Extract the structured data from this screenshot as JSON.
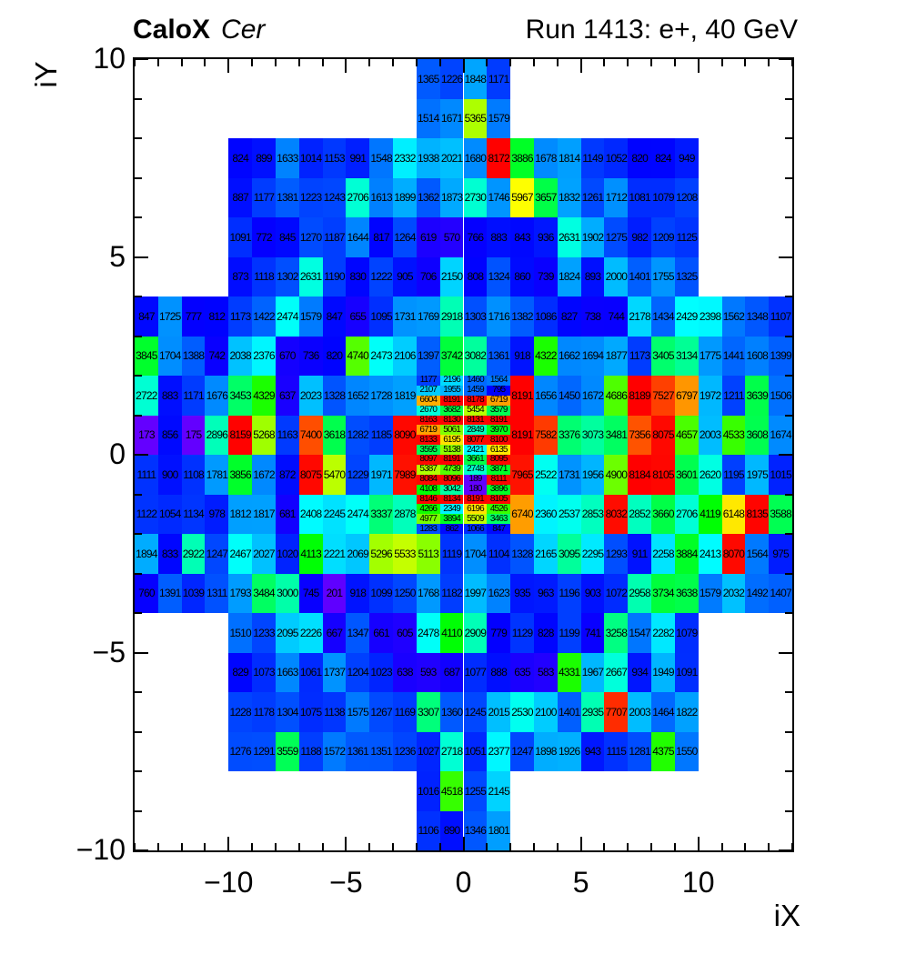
{
  "header": {
    "title_left_bold": "CaloX",
    "title_left_italic": "Cer",
    "title_right": "Run 1413: e+, 40 GeV"
  },
  "chart_data": {
    "type": "heatmap",
    "title": "CaloX Cer",
    "annotation_right": "Run 1413: e+, 40 GeV",
    "xlabel": "iX",
    "ylabel": "iY",
    "xlim": [
      -14,
      14
    ],
    "ylim": [
      -10,
      10
    ],
    "zmin": 0,
    "zmax": 8191,
    "palette": "root-rainbow-blue-to-red",
    "grid": false,
    "x_major_ticks": [
      -10,
      -5,
      0,
      5,
      10
    ],
    "x_tick_labels": [
      "−10",
      "−5",
      "0",
      "5",
      "10"
    ],
    "y_major_ticks": [
      10,
      5,
      0,
      -5,
      -10
    ],
    "y_tick_labels": [
      "10",
      "5",
      "0",
      "−5",
      "−10"
    ],
    "rows": [
      {
        "y_top": 10,
        "segments": [
          {
            "x0": -2,
            "values": [
              1365,
              1226,
              1848,
              1171
            ]
          }
        ]
      },
      {
        "y_top": 9,
        "segments": [
          {
            "x0": -2,
            "values": [
              1514,
              1671,
              5365,
              1579
            ]
          }
        ]
      },
      {
        "y_top": 8,
        "segments": [
          {
            "x0": -10,
            "values": [
              824,
              899,
              1633,
              1014,
              1153,
              991,
              1548,
              2332,
              1938,
              2021,
              1680,
              8172,
              3886,
              1678,
              1814,
              1149,
              1052,
              820,
              824,
              949
            ]
          }
        ]
      },
      {
        "y_top": 7,
        "segments": [
          {
            "x0": -10,
            "values": [
              887,
              1177,
              1381,
              1223,
              1243,
              2706,
              1613,
              1899,
              1362,
              1873,
              2730,
              1746,
              5967,
              3657,
              1832,
              1261,
              1712,
              1081,
              1079,
              1208
            ]
          }
        ]
      },
      {
        "y_top": 6,
        "segments": [
          {
            "x0": -10,
            "values": [
              1091,
              772,
              845,
              1270,
              1187,
              1644,
              817,
              1264,
              619,
              570,
              766,
              883,
              843,
              936,
              2631,
              1902,
              1275,
              982,
              1209,
              1125
            ]
          }
        ]
      },
      {
        "y_top": 5,
        "segments": [
          {
            "x0": -10,
            "values": [
              873,
              1118,
              1302,
              2631,
              1190,
              830,
              1222,
              905,
              706,
              2150,
              808,
              1324,
              860,
              739,
              1824,
              893,
              2000,
              1401,
              1755,
              1325
            ]
          }
        ]
      },
      {
        "y_top": 4,
        "segments": [
          {
            "x0": -14,
            "values": [
              847,
              1725,
              777,
              812,
              1173,
              1422,
              2474,
              1579,
              847,
              655,
              1095,
              1731,
              1769,
              2918,
              1303,
              1716,
              1382,
              1086,
              827,
              738,
              744,
              2178,
              1434,
              2429,
              2398,
              1562,
              1348,
              1107
            ]
          }
        ]
      },
      {
        "y_top": 3,
        "segments": [
          {
            "x0": -14,
            "values": [
              3845,
              1704,
              1388,
              742,
              2038,
              2376,
              670,
              736,
              820,
              4740,
              2473,
              2106,
              1397,
              3742,
              3082,
              1361,
              918,
              4322,
              1662,
              1694,
              1877,
              1173,
              3405,
              3134,
              1775,
              1441,
              1608,
              1399
            ]
          }
        ]
      },
      {
        "y_top": 2,
        "segments": [
          {
            "x0": -14,
            "values": [
              2722,
              883,
              1171,
              1676,
              3453,
              4329,
              637,
              2023,
              1328,
              1652,
              1728,
              1819
            ]
          },
          {
            "x0": 2,
            "values": [
              8191,
              1656,
              1450,
              1672,
              4686,
              8189,
              7527,
              6797,
              1972,
              1211,
              3639,
              1506
            ]
          }
        ]
      },
      {
        "y_top": 1,
        "segments": [
          {
            "x0": -14,
            "values": [
              173,
              856,
              175,
              2896,
              8159,
              5268,
              1163,
              7400,
              3618,
              1282,
              1185,
              8090
            ]
          },
          {
            "x0": 2,
            "values": [
              8191,
              7582,
              3376,
              3073,
              3481,
              7356,
              8075,
              4657,
              2003,
              4533,
              3608,
              1674
            ]
          }
        ]
      },
      {
        "y_top": 0,
        "segments": [
          {
            "x0": -14,
            "values": [
              1111,
              900,
              1108,
              1781,
              3856,
              1672,
              872,
              8075,
              5470,
              1229,
              1971,
              7989
            ]
          },
          {
            "x0": 2,
            "values": [
              7965,
              2522,
              1731,
              1956,
              4900,
              8184,
              8105,
              3601,
              2620,
              1195,
              1975,
              1015
            ]
          }
        ]
      },
      {
        "y_top": -1,
        "segments": [
          {
            "x0": -14,
            "values": [
              1122,
              1054,
              1134,
              978,
              1812,
              1817,
              681,
              2408,
              2245,
              2474,
              3337,
              2878
            ]
          },
          {
            "x0": 2,
            "values": [
              6740,
              2360,
              2537,
              2853,
              8032,
              2852,
              3660,
              2706,
              4119,
              6148,
              8135,
              3588
            ]
          }
        ]
      },
      {
        "y_top": -2,
        "segments": [
          {
            "x0": -14,
            "values": [
              1894,
              833,
              2922,
              1247,
              2467,
              2027,
              1020,
              4113,
              2221,
              2069,
              5296,
              5533,
              5113,
              1119,
              1704,
              1104,
              1328,
              2165,
              3095,
              2295,
              1293,
              911,
              2258,
              3884,
              2413,
              8070,
              1564,
              975
            ]
          }
        ]
      },
      {
        "y_top": -3,
        "segments": [
          {
            "x0": -14,
            "values": [
              760,
              1391,
              1039,
              1311,
              1793,
              3484,
              3000,
              745,
              201,
              918,
              1099,
              1250,
              1768,
              1182,
              1997,
              1623,
              935,
              963,
              1196,
              903,
              1072,
              2958,
              3734,
              3638,
              1579,
              2032,
              1492,
              1407
            ]
          }
        ]
      },
      {
        "y_top": -4,
        "segments": [
          {
            "x0": -10,
            "values": [
              1510,
              1233,
              2095,
              2226,
              667,
              1347,
              661,
              605,
              2478,
              4110,
              2909,
              779,
              1129,
              828,
              1199,
              741,
              3258,
              1547,
              2282,
              1079
            ]
          }
        ]
      },
      {
        "y_top": -5,
        "segments": [
          {
            "x0": -10,
            "values": [
              829,
              1073,
              1663,
              1061,
              1737,
              1204,
              1023,
              638,
              593,
              687,
              1077,
              888,
              635,
              583,
              4331,
              1967,
              2667,
              934,
              1949,
              1091
            ]
          }
        ]
      },
      {
        "y_top": -6,
        "segments": [
          {
            "x0": -10,
            "values": [
              1228,
              1178,
              1304,
              1075,
              1138,
              1575,
              1267,
              1169,
              3307,
              1360,
              1245,
              2015,
              2530,
              2100,
              1401,
              2935,
              7707,
              2003,
              1464,
              1822
            ]
          }
        ]
      },
      {
        "y_top": -7,
        "segments": [
          {
            "x0": -10,
            "values": [
              1276,
              1291,
              3559,
              1188,
              1572,
              1361,
              1351,
              1236,
              1027,
              2718,
              1051,
              2377,
              1247,
              1898,
              1926,
              943,
              1115,
              1281,
              4375,
              1550
            ]
          }
        ]
      },
      {
        "y_top": -8,
        "segments": [
          {
            "x0": -2,
            "values": [
              1016,
              4518,
              1255,
              2145
            ]
          }
        ]
      },
      {
        "y_top": -9,
        "segments": [
          {
            "x0": -2,
            "values": [
              1106,
              890,
              1346,
              1801
            ]
          }
        ]
      }
    ],
    "center_block": {
      "x0": -2,
      "y_top": 2,
      "cols": 4,
      "sub_rows_per_unit": 4,
      "rows": [
        [
          1177,
          2196,
          1460,
          1564
        ],
        [
          2107,
          1955,
          1459,
          795
        ],
        [
          6604,
          8191,
          8178,
          6719
        ],
        [
          2670,
          3682,
          5454,
          3579
        ],
        [
          8163,
          8130,
          8131,
          8191
        ],
        [
          6719,
          5061,
          2849,
          3970
        ],
        [
          8133,
          6195,
          8077,
          8100
        ],
        [
          3595,
          5138,
          2421,
          6135
        ],
        [
          8097,
          8191,
          3661,
          8095
        ],
        [
          5387,
          4739,
          2748,
          3871
        ],
        [
          8084,
          8096,
          189,
          8111
        ],
        [
          4108,
          3042,
          180,
          3896
        ],
        [
          8146,
          8134,
          8191,
          8105
        ],
        [
          4266,
          2349,
          6196,
          4526
        ],
        [
          4977,
          3894,
          5509,
          3463
        ],
        [
          1283,
          862,
          1066,
          847
        ]
      ]
    }
  }
}
